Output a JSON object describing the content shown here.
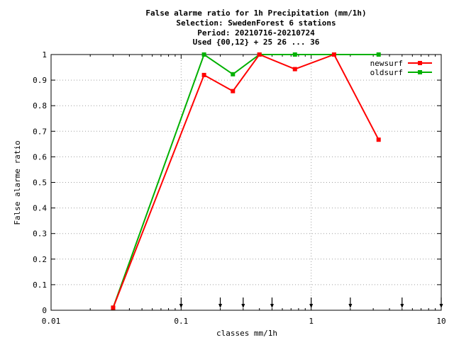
{
  "chart_data": {
    "type": "line",
    "title_lines": [
      "False alarme ratio  for 1h Precipitation (mm/1h)",
      "Selection: SwedenForest      6 stations",
      "Period: 20210716-20210724",
      "Used {00,12} + 25 26 ... 36"
    ],
    "xlabel": "classes mm/1h",
    "ylabel": "False alarme ratio",
    "x_scale": "log",
    "xlim": [
      0.01,
      10
    ],
    "ylim": [
      0,
      1
    ],
    "x_ticks": [
      {
        "value": 0.01,
        "label": "0.01"
      },
      {
        "value": 0.1,
        "label": "0.1"
      },
      {
        "value": 1,
        "label": "1"
      },
      {
        "value": 10,
        "label": "10"
      }
    ],
    "y_ticks": [
      {
        "value": 0,
        "label": "0"
      },
      {
        "value": 0.1,
        "label": "0.1"
      },
      {
        "value": 0.2,
        "label": "0.2"
      },
      {
        "value": 0.3,
        "label": "0.3"
      },
      {
        "value": 0.4,
        "label": "0.4"
      },
      {
        "value": 0.5,
        "label": "0.5"
      },
      {
        "value": 0.6,
        "label": "0.6"
      },
      {
        "value": 0.7,
        "label": "0.7"
      },
      {
        "value": 0.8,
        "label": "0.8"
      },
      {
        "value": 0.9,
        "label": "0.9"
      },
      {
        "value": 1,
        "label": "1"
      }
    ],
    "grid": true,
    "legend_position": "top-right",
    "class_markers": [
      0.1,
      0.2,
      0.3,
      0.5,
      1,
      2,
      5,
      10
    ],
    "series": [
      {
        "name": "newsurf",
        "color": "#ff0000",
        "x": [
          0.03,
          0.15,
          0.25,
          0.4,
          0.75,
          1.5,
          3.3
        ],
        "y": [
          0.01,
          0.92,
          0.857,
          1.0,
          0.943,
          1.0,
          0.667
        ]
      },
      {
        "name": "oldsurf",
        "color": "#00b000",
        "x": [
          0.03,
          0.15,
          0.25,
          0.4,
          0.75,
          1.5,
          3.3
        ],
        "y": [
          0.01,
          1.0,
          0.923,
          1.0,
          1.0,
          1.0,
          1.0
        ]
      }
    ]
  }
}
